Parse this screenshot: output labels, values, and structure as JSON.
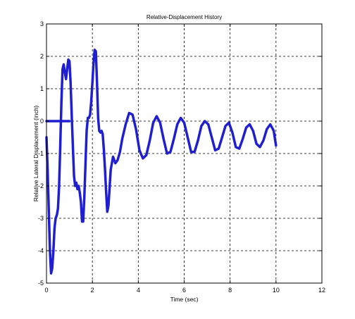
{
  "chart_data": {
    "type": "line",
    "title": "Relative-Displacement History",
    "xlabel": "Time (sec)",
    "ylabel": "Relative Lateral Displacement (inch)",
    "xlim": [
      0,
      12
    ],
    "ylim": [
      -5,
      3
    ],
    "xticks": [
      0,
      2,
      4,
      6,
      8,
      10,
      12
    ],
    "yticks": [
      -5,
      -4,
      -3,
      -2,
      -1,
      0,
      1,
      2,
      3
    ],
    "grid": true,
    "grid_style": "dashed",
    "legend": "none",
    "series": [
      {
        "color": "#1f1fd1",
        "x": [
          0.0,
          0.05,
          0.1,
          0.15,
          0.2,
          0.25,
          0.3,
          0.35,
          0.4,
          0.45,
          0.5,
          0.55,
          0.6,
          0.65,
          0.7,
          0.75,
          0.8,
          0.85,
          0.9,
          0.95,
          1.0,
          1.05,
          1.1,
          1.15,
          1.2,
          1.25,
          1.3,
          1.35,
          1.4,
          1.45,
          1.5,
          1.55,
          1.6,
          1.65,
          1.7,
          1.75,
          1.8,
          1.85,
          1.9,
          1.95,
          2.0,
          2.05,
          2.1,
          2.15,
          2.2,
          2.25,
          2.3,
          2.35,
          2.4,
          2.45,
          2.5,
          2.55,
          2.6,
          2.65,
          2.7,
          2.8,
          2.9,
          3.0,
          3.1,
          3.2,
          3.3,
          3.45,
          3.6,
          3.75,
          3.9,
          4.05,
          4.2,
          4.35,
          4.5,
          4.65,
          4.8,
          4.95,
          5.1,
          5.25,
          5.4,
          5.55,
          5.7,
          5.85,
          6.0,
          6.15,
          6.3,
          6.45,
          6.6,
          6.75,
          6.9,
          7.05,
          7.2,
          7.35,
          7.5,
          7.65,
          7.8,
          7.95,
          8.1,
          8.25,
          8.4,
          8.55,
          8.7,
          8.85,
          9.0,
          9.15,
          9.3,
          9.45,
          9.6,
          9.75,
          9.9,
          10.0
        ],
        "y": [
          -0.5,
          -1.5,
          -2.8,
          -4.0,
          -4.7,
          -4.55,
          -4.0,
          -3.3,
          -3.0,
          -2.9,
          -2.7,
          -2.0,
          -0.8,
          0.6,
          1.6,
          1.75,
          1.5,
          1.3,
          1.6,
          1.9,
          1.85,
          1.2,
          0.2,
          -0.8,
          -1.7,
          -2.0,
          -1.9,
          -2.1,
          -2.0,
          -2.2,
          -2.5,
          -3.1,
          -3.1,
          -2.3,
          -1.3,
          -0.3,
          0.1,
          0.1,
          0.2,
          0.6,
          1.2,
          1.8,
          2.2,
          2.15,
          1.2,
          0.1,
          -0.3,
          -0.35,
          -0.3,
          -0.4,
          -0.9,
          -1.5,
          -2.2,
          -2.8,
          -2.6,
          -1.5,
          -1.1,
          -1.3,
          -1.2,
          -0.95,
          -0.55,
          -0.1,
          0.25,
          0.2,
          -0.25,
          -0.9,
          -1.15,
          -1.05,
          -0.6,
          -0.05,
          0.15,
          -0.05,
          -0.55,
          -1.0,
          -0.95,
          -0.55,
          -0.1,
          0.1,
          -0.05,
          -0.5,
          -0.95,
          -0.95,
          -0.6,
          -0.15,
          0.0,
          -0.1,
          -0.5,
          -0.9,
          -0.85,
          -0.5,
          -0.15,
          -0.05,
          -0.35,
          -0.8,
          -0.85,
          -0.55,
          -0.2,
          -0.1,
          -0.3,
          -0.7,
          -0.8,
          -0.6,
          -0.25,
          -0.1,
          -0.3,
          -0.75
        ]
      },
      {
        "color": "#1f1fd1",
        "x": [
          0.0,
          0.3,
          0.6,
          0.9,
          1.0
        ],
        "y": [
          0.0,
          0.0,
          0.0,
          0.0,
          0.0
        ]
      }
    ]
  }
}
